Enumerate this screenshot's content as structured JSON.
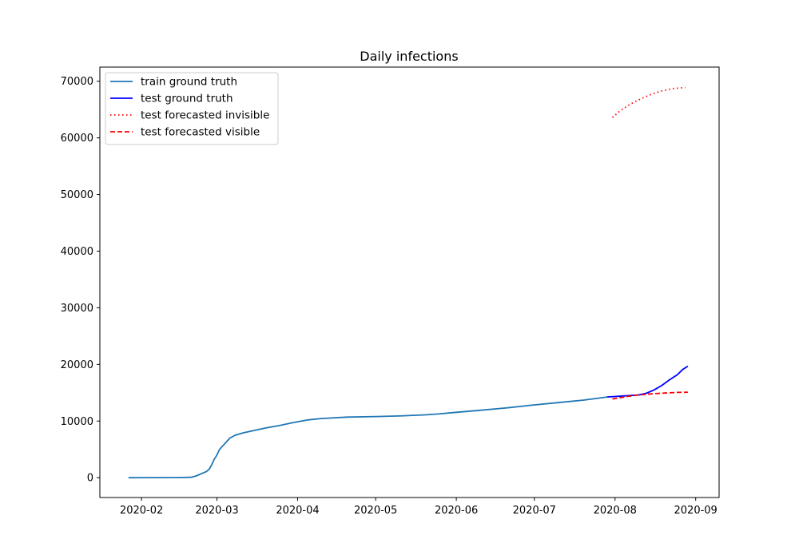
{
  "chart_data": {
    "type": "line",
    "title": "Daily infections",
    "xlabel": "",
    "ylabel": "",
    "x_axis": {
      "type": "date",
      "range": [
        "2020-01-16",
        "2020-09-10"
      ],
      "ticks": [
        "2020-02-01",
        "2020-03-01",
        "2020-04-01",
        "2020-05-01",
        "2020-06-01",
        "2020-07-01",
        "2020-08-01",
        "2020-09-01"
      ],
      "tick_labels": [
        "2020-02",
        "2020-03",
        "2020-04",
        "2020-05",
        "2020-06",
        "2020-07",
        "2020-08",
        "2020-09"
      ]
    },
    "y_axis": {
      "range": [
        -3500,
        72500
      ],
      "ticks": [
        0,
        10000,
        20000,
        30000,
        40000,
        50000,
        60000,
        70000
      ],
      "tick_labels": [
        "0",
        "10000",
        "20000",
        "30000",
        "40000",
        "50000",
        "60000",
        "70000"
      ]
    },
    "grid": false,
    "legend": {
      "position": "top-left"
    },
    "series": [
      {
        "name": "train ground truth",
        "color": "#1f77b4",
        "style": "solid",
        "points": [
          [
            "2020-01-27",
            0
          ],
          [
            "2020-02-05",
            10
          ],
          [
            "2020-02-15",
            30
          ],
          [
            "2020-02-20",
            70
          ],
          [
            "2020-02-22",
            300
          ],
          [
            "2020-02-24",
            700
          ],
          [
            "2020-02-26",
            1100
          ],
          [
            "2020-02-27",
            1500
          ],
          [
            "2020-02-28",
            2300
          ],
          [
            "2020-02-29",
            3300
          ],
          [
            "2020-03-01",
            4000
          ],
          [
            "2020-03-02",
            5000
          ],
          [
            "2020-03-04",
            6000
          ],
          [
            "2020-03-06",
            7000
          ],
          [
            "2020-03-08",
            7500
          ],
          [
            "2020-03-11",
            7900
          ],
          [
            "2020-03-15",
            8300
          ],
          [
            "2020-03-20",
            8800
          ],
          [
            "2020-03-25",
            9200
          ],
          [
            "2020-03-30",
            9700
          ],
          [
            "2020-04-05",
            10200
          ],
          [
            "2020-04-10",
            10450
          ],
          [
            "2020-04-20",
            10700
          ],
          [
            "2020-05-01",
            10800
          ],
          [
            "2020-05-10",
            10900
          ],
          [
            "2020-05-20",
            11100
          ],
          [
            "2020-05-25",
            11250
          ],
          [
            "2020-06-01",
            11550
          ],
          [
            "2020-06-10",
            11900
          ],
          [
            "2020-06-20",
            12300
          ],
          [
            "2020-06-30",
            12800
          ],
          [
            "2020-07-10",
            13250
          ],
          [
            "2020-07-20",
            13700
          ],
          [
            "2020-07-25",
            14000
          ],
          [
            "2020-07-29",
            14250
          ]
        ]
      },
      {
        "name": "test ground truth",
        "color": "#0000ff",
        "style": "solid",
        "points": [
          [
            "2020-07-29",
            14250
          ],
          [
            "2020-08-05",
            14450
          ],
          [
            "2020-08-10",
            14600
          ],
          [
            "2020-08-13",
            14900
          ],
          [
            "2020-08-16",
            15500
          ],
          [
            "2020-08-19",
            16300
          ],
          [
            "2020-08-22",
            17300
          ],
          [
            "2020-08-25",
            18200
          ],
          [
            "2020-08-27",
            19100
          ],
          [
            "2020-08-29",
            19700
          ]
        ]
      },
      {
        "name": "test forecasted invisible",
        "color": "#ff0000",
        "style": "dotted",
        "points": [
          [
            "2020-07-31",
            63600
          ],
          [
            "2020-08-03",
            64800
          ],
          [
            "2020-08-07",
            66000
          ],
          [
            "2020-08-11",
            66900
          ],
          [
            "2020-08-15",
            67700
          ],
          [
            "2020-08-19",
            68300
          ],
          [
            "2020-08-23",
            68700
          ],
          [
            "2020-08-28",
            68900
          ]
        ]
      },
      {
        "name": "test forecasted visible",
        "color": "#ff0000",
        "style": "dashed",
        "points": [
          [
            "2020-07-31",
            13900
          ],
          [
            "2020-08-05",
            14300
          ],
          [
            "2020-08-10",
            14600
          ],
          [
            "2020-08-15",
            14800
          ],
          [
            "2020-08-20",
            14950
          ],
          [
            "2020-08-25",
            15050
          ],
          [
            "2020-08-29",
            15100
          ]
        ]
      }
    ]
  }
}
